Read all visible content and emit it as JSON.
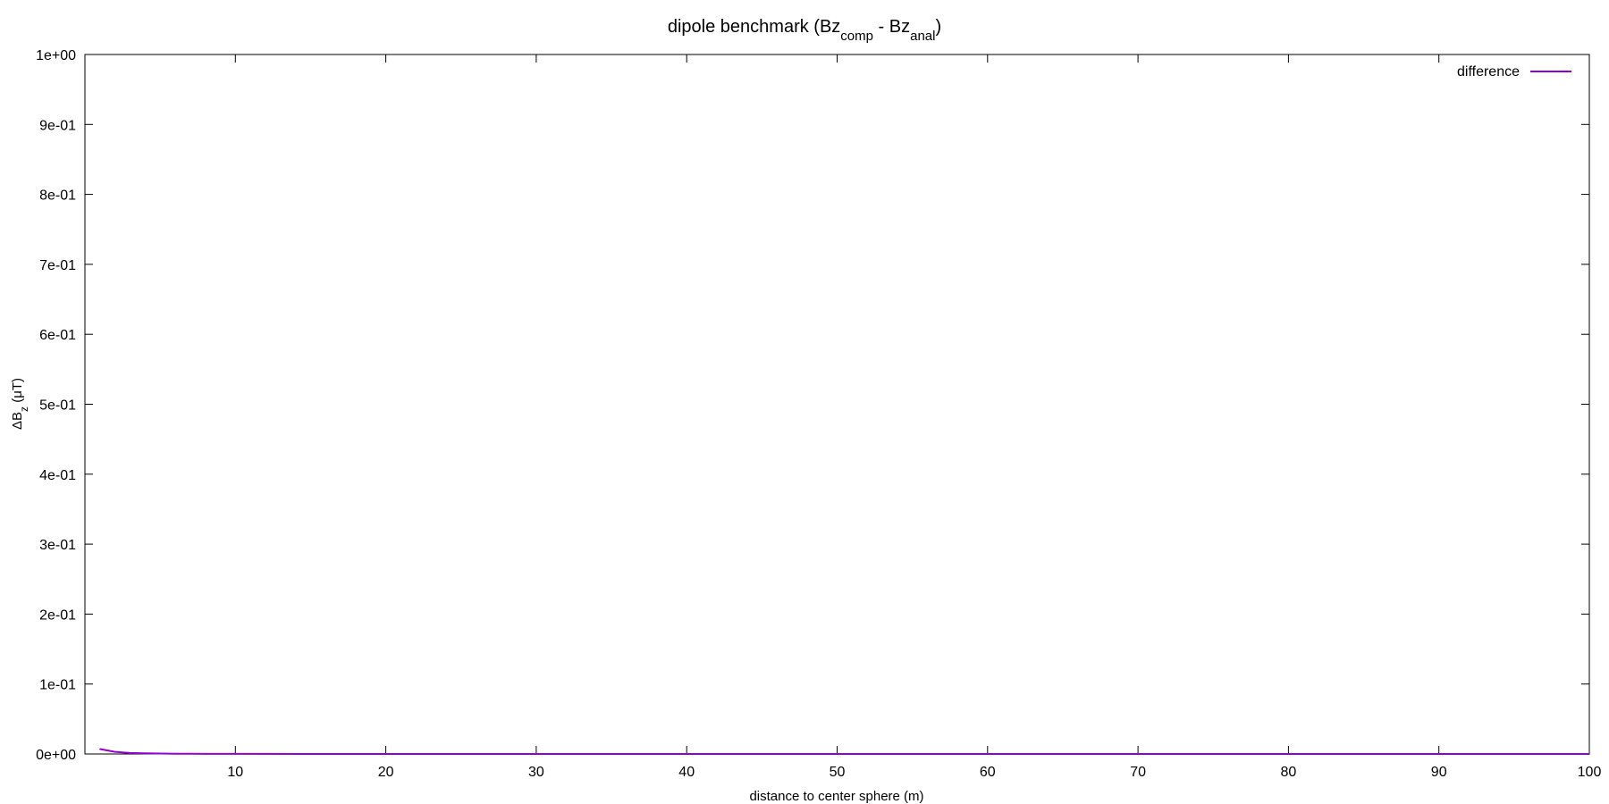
{
  "chart_data": {
    "type": "line",
    "title_parts": [
      {
        "text": "dipole benchmark (Bz",
        "sub": false
      },
      {
        "text": "comp",
        "sub": true
      },
      {
        "text": " - Bz",
        "sub": false
      },
      {
        "text": "anal",
        "sub": true
      },
      {
        "text": ")",
        "sub": false
      }
    ],
    "xlabel": "distance to center sphere (m)",
    "ylabel_parts": [
      {
        "text": "ΔB",
        "sub": false
      },
      {
        "text": "z",
        "sub": true
      },
      {
        "text": " (μT)",
        "sub": false
      }
    ],
    "xlim": [
      0,
      100
    ],
    "ylim": [
      0,
      1
    ],
    "x_ticks": [
      {
        "value": 10,
        "label": "10"
      },
      {
        "value": 20,
        "label": "20"
      },
      {
        "value": 30,
        "label": "30"
      },
      {
        "value": 40,
        "label": "40"
      },
      {
        "value": 50,
        "label": "50"
      },
      {
        "value": 60,
        "label": "60"
      },
      {
        "value": 70,
        "label": "70"
      },
      {
        "value": 80,
        "label": "80"
      },
      {
        "value": 90,
        "label": "90"
      },
      {
        "value": 100,
        "label": "100"
      }
    ],
    "y_ticks": [
      {
        "value": 0,
        "label": "0e+00"
      },
      {
        "value": 0.1,
        "label": "1e-01"
      },
      {
        "value": 0.2,
        "label": "2e-01"
      },
      {
        "value": 0.3,
        "label": "3e-01"
      },
      {
        "value": 0.4,
        "label": "4e-01"
      },
      {
        "value": 0.5,
        "label": "5e-01"
      },
      {
        "value": 0.6,
        "label": "6e-01"
      },
      {
        "value": 0.7,
        "label": "7e-01"
      },
      {
        "value": 0.8,
        "label": "8e-01"
      },
      {
        "value": 0.9,
        "label": "9e-01"
      },
      {
        "value": 1.0,
        "label": "1e+00"
      }
    ],
    "grid": false,
    "legend_position": "top-right",
    "series": [
      {
        "name": "difference",
        "color": "#9400d3",
        "x": [
          1,
          2,
          3,
          4,
          5,
          6,
          7,
          8,
          10,
          15,
          20,
          30,
          40,
          50,
          60,
          70,
          80,
          90,
          100
        ],
        "y": [
          0.007,
          0.003,
          0.0015,
          0.0009,
          0.0006,
          0.0004,
          0.0003,
          0.0002,
          0.0001,
          5e-05,
          3e-05,
          1e-05,
          5e-06,
          3e-06,
          2e-06,
          1e-06,
          1e-06,
          1e-06,
          5e-07
        ]
      }
    ]
  }
}
